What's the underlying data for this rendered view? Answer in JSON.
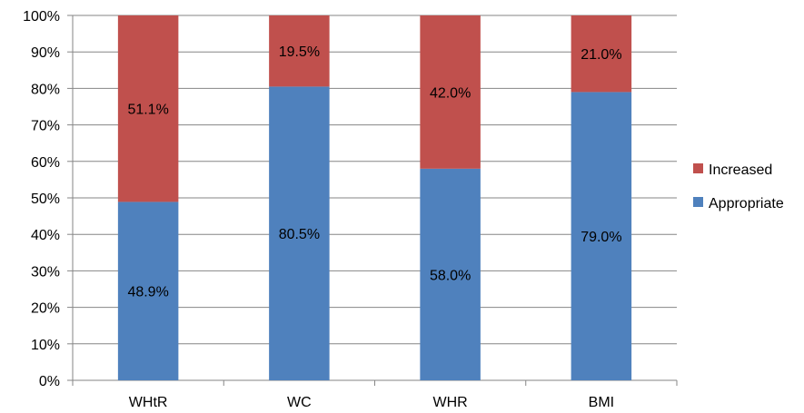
{
  "chart_data": {
    "type": "bar",
    "stacked": true,
    "normalized": true,
    "categories": [
      "WHtR",
      "WC",
      "WHR",
      "BMI"
    ],
    "series": [
      {
        "name": "Appropriate",
        "color": "#4f81bd",
        "values": [
          48.9,
          80.5,
          58.0,
          79.0
        ],
        "labels": [
          "48.9%",
          "80.5%",
          "58.0%",
          "79.0%"
        ]
      },
      {
        "name": "Increased",
        "color": "#c0504d",
        "values": [
          51.1,
          19.5,
          42.0,
          21.0
        ],
        "labels": [
          "51.1%",
          "19.5%",
          "42.0%",
          "21.0%"
        ]
      }
    ],
    "ylim": [
      0,
      100
    ],
    "y_ticks": [
      "0%",
      "10%",
      "20%",
      "30%",
      "40%",
      "50%",
      "60%",
      "70%",
      "80%",
      "90%",
      "100%"
    ],
    "grid": true,
    "legend": {
      "position": "right",
      "entries": [
        "Increased",
        "Appropriate"
      ]
    },
    "title": "",
    "xlabel": "",
    "ylabel": ""
  }
}
